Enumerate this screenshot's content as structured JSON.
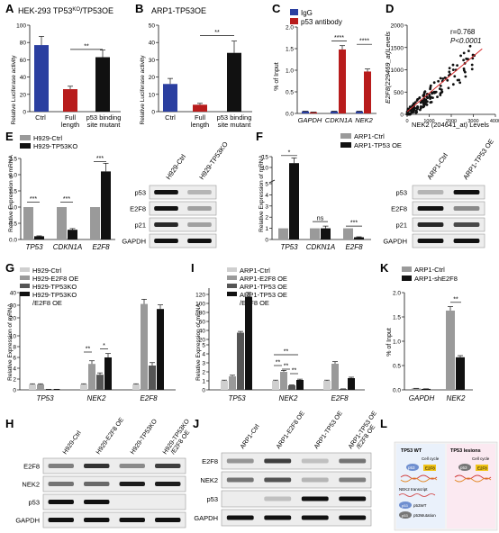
{
  "panels": {
    "A": {
      "letter": "A",
      "title": "HEK-293 TP53",
      "title_sup": "KO",
      "title_rest": "/TP53OE",
      "ylabel": "Relative Luciferase activity",
      "yticks": [
        "0",
        "20",
        "40",
        "60",
        "80",
        "100"
      ],
      "cats": [
        "Ctrl",
        "Full",
        "length",
        "p53 binding",
        "site mutant"
      ],
      "sig": "**"
    },
    "B": {
      "letter": "B",
      "title": "ARP1-TP53OE",
      "ylabel": "Relative Luciferase activity",
      "yticks": [
        "0",
        "10",
        "20",
        "30",
        "40",
        "50"
      ],
      "cats": [
        "Ctrl",
        "Full",
        "length",
        "p53 binding",
        "site mutant"
      ],
      "sig": "**"
    },
    "C": {
      "letter": "C",
      "legend": [
        "IgG",
        "p53 antibody"
      ],
      "ylabel": "% of Input",
      "yticks": [
        "0.0",
        "0.5",
        "1.0",
        "1.5",
        "2.0"
      ],
      "cats": [
        "GAPDH",
        "CDKN1A",
        "NEK2"
      ],
      "sig": [
        "****",
        "****"
      ]
    },
    "D": {
      "letter": "D",
      "r": "r=0.768",
      "p": "P<0.0001",
      "ylabel": "E2F8(229469_at)Levels",
      "xlabel": "NEK2 (204641_at) Levels",
      "xticks": [
        "0",
        "1000",
        "2000",
        "3000",
        "4000"
      ],
      "yticks": [
        "0",
        "500",
        "1000",
        "1500",
        "2000"
      ]
    },
    "E": {
      "letter": "E",
      "legend": [
        "H929-Ctrl",
        "H929-TP53KO"
      ],
      "ylabel": "Relative Expression of mRNA",
      "yticks": [
        "0.0",
        "0.5",
        "1.0",
        "1.5",
        "2.0",
        "2.5"
      ],
      "cats": [
        "TP53",
        "CDKN1A",
        "E2F8"
      ],
      "sig": [
        "***",
        "***",
        "***"
      ],
      "blot_cols": [
        "H929-Ctrl",
        "H929-TP53KO"
      ],
      "blot_rows": [
        "p53",
        "E2F8",
        "p21",
        "GAPDH"
      ]
    },
    "F": {
      "letter": "F",
      "legend": [
        "ARP1-Ctrl",
        "ARP1-TP53 OE"
      ],
      "ylabel": "Relative Expression of mRNA",
      "yticks": [
        "0",
        "1",
        "2",
        "3",
        "4",
        "5",
        "10",
        "15"
      ],
      "cats": [
        "TP53",
        "CDKN1A",
        "E2F8"
      ],
      "sig": [
        "*",
        "ns",
        "***"
      ],
      "blot_cols": [
        "ARP1-Ctrl",
        "ARP1-TP53 OE"
      ],
      "blot_rows": [
        "p53",
        "E2F8",
        "p21",
        "GAPDH"
      ]
    },
    "G": {
      "letter": "G",
      "legend": [
        "H929-Ctrl",
        "H929-E2F8 OE",
        "H929-TP53KO",
        "H929-TP53KO",
        "/E2F8 OE"
      ],
      "ylabel": "Relative Expression of mRNA",
      "yticks": [
        "0",
        "2",
        "4",
        "6",
        "8",
        "10",
        "20",
        "30",
        "40"
      ],
      "cats": [
        "TP53",
        "NEK2",
        "E2F8"
      ],
      "sig": [
        "**",
        "*"
      ]
    },
    "I": {
      "letter": "I",
      "legend": [
        "ARP1-Ctrl",
        "ARP1-E2F8 OE",
        "ARP1-TP53 OE",
        "ARP1-TP53 OE",
        "/E2F8 OE"
      ],
      "ylabel": "Relative Expression of mRNA",
      "yticks": [
        "0",
        "1",
        "2",
        "3",
        "4",
        "5",
        "20",
        "40",
        "60",
        "80",
        "100",
        "120"
      ],
      "cats": [
        "TP53",
        "NEK2",
        "E2F8"
      ],
      "sig": [
        "**",
        "**",
        "**",
        "**"
      ]
    },
    "K": {
      "letter": "K",
      "legend": [
        "ARP1-Ctrl",
        "ARP1-shE2F8"
      ],
      "ylabel": "% of Input",
      "yticks": [
        "0.0",
        "0.5",
        "1.0",
        "1.5",
        "2.0"
      ],
      "cats": [
        "GAPDH",
        "NEK2"
      ],
      "sig": "**"
    },
    "H": {
      "letter": "H",
      "blot_cols": [
        "H929-Ctrl",
        "H929-E2F8 OE",
        "H929-TP53KO",
        "H929-TP53KO",
        "/E2F8 OE"
      ],
      "blot_rows": [
        "E2F8",
        "NEK2",
        "p53",
        "GAPDH"
      ]
    },
    "J": {
      "letter": "J",
      "blot_cols": [
        "ARP1-Ctrl",
        "ARP1-E2F8 OE",
        "ARP1-TP53 OE",
        "ARP1-TP53 OE",
        "/E2F8 OE"
      ],
      "blot_rows": [
        "E2F8",
        "NEK2",
        "p53",
        "GAPDH"
      ]
    },
    "L": {
      "letter": "L",
      "left_title": "TP53  WT",
      "right_title": "TP53 lesions",
      "cell_cycle": "Cell cycle",
      "nek2": "NEK2 transcript",
      "p53wt": "p53WT",
      "p53mut": "p53Mutation",
      "p53": "p53",
      "e2f8": "E2F8"
    }
  },
  "colors": {
    "blue": "#2b3fa0",
    "red": "#b81c1c",
    "black": "#111111",
    "grey": "#9a9a9a",
    "lightgrey": "#cfcfcf",
    "darkgrey": "#555555",
    "scatter_line": "#d62728"
  },
  "chart_data": [
    {
      "panel": "A",
      "type": "bar",
      "categories": [
        "Ctrl",
        "Full length",
        "p53 binding site mutant"
      ],
      "values": [
        77,
        26,
        63
      ],
      "ylim": [
        0,
        100
      ],
      "colors": [
        "#2b3fa0",
        "#b81c1c",
        "#111111"
      ]
    },
    {
      "panel": "B",
      "type": "bar",
      "categories": [
        "Ctrl",
        "Full length",
        "p53 binding site mutant"
      ],
      "values": [
        16,
        4,
        34
      ],
      "ylim": [
        0,
        50
      ],
      "colors": [
        "#2b3fa0",
        "#b81c1c",
        "#111111"
      ]
    },
    {
      "panel": "C",
      "type": "bar",
      "categories": [
        "GAPDH",
        "CDKN1A",
        "NEK2"
      ],
      "series": [
        {
          "name": "IgG",
          "values": [
            0.05,
            0.05,
            0.05
          ]
        },
        {
          "name": "p53 antibody",
          "values": [
            0.03,
            1.48,
            0.97
          ]
        }
      ],
      "ylim": [
        0,
        2
      ]
    },
    {
      "panel": "E",
      "type": "bar",
      "categories": [
        "TP53",
        "CDKN1A",
        "E2F8"
      ],
      "series": [
        {
          "name": "H929-Ctrl",
          "values": [
            1,
            1,
            1
          ]
        },
        {
          "name": "H929-TP53KO",
          "values": [
            0.1,
            0.3,
            2.1
          ]
        }
      ],
      "ylim": [
        0,
        2.5
      ]
    },
    {
      "panel": "F",
      "type": "bar",
      "categories": [
        "TP53",
        "CDKN1A",
        "E2F8"
      ],
      "series": [
        {
          "name": "ARP1-Ctrl",
          "values": [
            1,
            1,
            1
          ]
        },
        {
          "name": "ARP1-TP53 OE",
          "values": [
            12,
            1,
            0.2
          ]
        }
      ],
      "ylim": [
        0,
        15
      ]
    },
    {
      "panel": "G",
      "type": "bar",
      "categories": [
        "TP53",
        "NEK2",
        "E2F8"
      ],
      "series": [
        {
          "name": "H929-Ctrl",
          "values": [
            1,
            1,
            1
          ]
        },
        {
          "name": "H929-E2F8 OE",
          "values": [
            1,
            4.8,
            31
          ]
        },
        {
          "name": "H929-TP53KO",
          "values": [
            0.1,
            2.8,
            4.5
          ]
        },
        {
          "name": "H929-TP53KO/E2F8 OE",
          "values": [
            0.1,
            6,
            27
          ]
        }
      ],
      "ylim": [
        0,
        40
      ]
    },
    {
      "panel": "I",
      "type": "bar",
      "categories": [
        "TP53",
        "NEK2",
        "E2F8"
      ],
      "series": [
        {
          "name": "ARP1-Ctrl",
          "values": [
            1,
            1,
            1
          ]
        },
        {
          "name": "ARP1-E2F8 OE",
          "values": [
            1.5,
            2,
            2.9
          ]
        },
        {
          "name": "ARP1-TP53 OE",
          "values": [
            35,
            0.5,
            0.1
          ]
        },
        {
          "name": "ARP1-TP53 OE/E2F8 OE",
          "values": [
            115,
            1.1,
            1.3
          ]
        }
      ],
      "ylim": [
        0,
        120
      ]
    },
    {
      "panel": "K",
      "type": "bar",
      "categories": [
        "GAPDH",
        "NEK2"
      ],
      "series": [
        {
          "name": "ARP1-Ctrl",
          "values": [
            0.03,
            1.63
          ]
        },
        {
          "name": "ARP1-shE2F8",
          "values": [
            0.02,
            0.67
          ]
        }
      ],
      "ylim": [
        0,
        2
      ]
    }
  ]
}
